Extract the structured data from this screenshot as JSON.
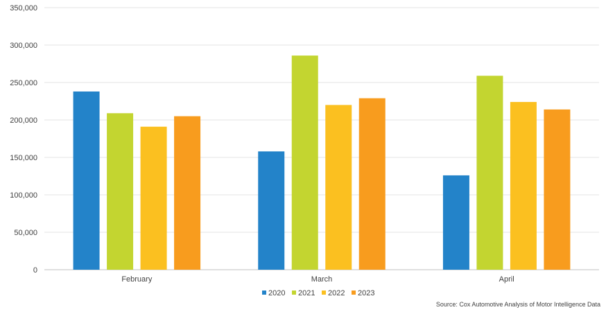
{
  "chart_data": {
    "type": "bar",
    "categories": [
      "February",
      "March",
      "April"
    ],
    "series": [
      {
        "name": "2020",
        "color": "#2383c9",
        "values": [
          238000,
          158000,
          126000
        ]
      },
      {
        "name": "2021",
        "color": "#c3d530",
        "values": [
          209000,
          286000,
          259000
        ]
      },
      {
        "name": "2022",
        "color": "#fbc020",
        "values": [
          191000,
          220000,
          224000
        ]
      },
      {
        "name": "2023",
        "color": "#f89c1e",
        "values": [
          205000,
          229000,
          214000
        ]
      }
    ],
    "ylim": [
      0,
      350000
    ],
    "yticks": [
      "0",
      "50,000",
      "100,000",
      "150,000",
      "200,000",
      "250,000",
      "300,000",
      "350,000"
    ],
    "grid": true,
    "legend_position": "bottom",
    "source": "Source: Cox Automotive Analysis of Motor Intelligence Data"
  }
}
